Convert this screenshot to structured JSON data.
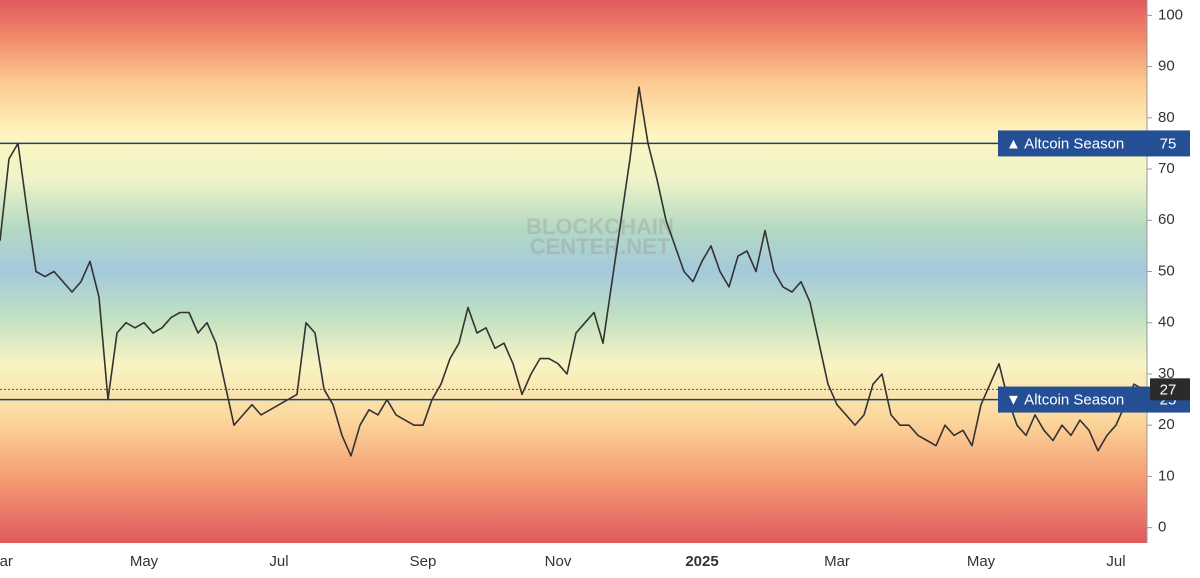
{
  "chart_data": {
    "type": "line",
    "categories": [
      "Mar",
      null,
      null,
      null,
      null,
      null,
      null,
      null,
      null,
      null,
      null,
      null,
      null,
      null,
      null,
      null,
      "May",
      null,
      null,
      null,
      null,
      null,
      null,
      null,
      null,
      null,
      null,
      null,
      null,
      null,
      null,
      "Jul",
      null,
      null,
      null,
      null,
      null,
      null,
      null,
      null,
      null,
      null,
      null,
      null,
      null,
      null,
      null,
      "Sep",
      null,
      null,
      null,
      null,
      null,
      null,
      null,
      null,
      null,
      null,
      null,
      null,
      null,
      null,
      "Nov",
      null,
      null,
      null,
      null,
      null,
      null,
      null,
      null,
      null,
      null,
      null,
      null,
      null,
      null,
      null,
      "2025",
      null,
      null,
      null,
      null,
      null,
      null,
      null,
      null,
      null,
      null,
      null,
      null,
      null,
      null,
      "Mar",
      null,
      null,
      null,
      null,
      null,
      null,
      null,
      null,
      null,
      null,
      null,
      null,
      null,
      null,
      null,
      "May",
      null,
      null,
      null,
      null,
      null,
      null,
      null,
      null,
      null,
      null,
      null,
      null,
      null,
      null,
      "Jul",
      null,
      null,
      null
    ],
    "values": [
      56,
      72,
      75,
      62,
      50,
      49,
      50,
      48,
      46,
      48,
      52,
      45,
      25,
      38,
      40,
      39,
      40,
      38,
      39,
      41,
      42,
      42,
      38,
      40,
      36,
      28,
      20,
      22,
      24,
      22,
      23,
      24,
      25,
      26,
      40,
      38,
      27,
      24,
      18,
      14,
      20,
      23,
      22,
      25,
      22,
      21,
      20,
      20,
      25,
      28,
      33,
      36,
      43,
      38,
      39,
      35,
      36,
      32,
      26,
      30,
      33,
      33,
      32,
      30,
      38,
      40,
      42,
      36,
      48,
      60,
      72,
      86,
      75,
      68,
      60,
      55,
      50,
      48,
      52,
      55,
      50,
      47,
      53,
      54,
      50,
      58,
      50,
      47,
      46,
      48,
      44,
      36,
      28,
      24,
      22,
      20,
      22,
      28,
      30,
      22,
      20,
      20,
      18,
      17,
      16,
      20,
      18,
      19,
      16,
      24,
      28,
      32,
      25,
      20,
      18,
      22,
      19,
      17,
      20,
      18,
      21,
      19,
      15,
      18,
      20,
      24,
      28,
      27
    ],
    "color": "#333333",
    "ylim": [
      -3,
      103
    ],
    "yticks": [
      0,
      10,
      20,
      30,
      40,
      50,
      60,
      70,
      80,
      90,
      100
    ],
    "reference_lines": [
      {
        "value": 75,
        "label": "▲ Altcoin Season",
        "color": "#1d3f7c"
      },
      {
        "value": 25,
        "label": "▼ Altcoin Season",
        "color": "#1d3f7c"
      }
    ],
    "watermark": [
      "BLOCKCHAIN",
      "CENTER.NET"
    ]
  }
}
